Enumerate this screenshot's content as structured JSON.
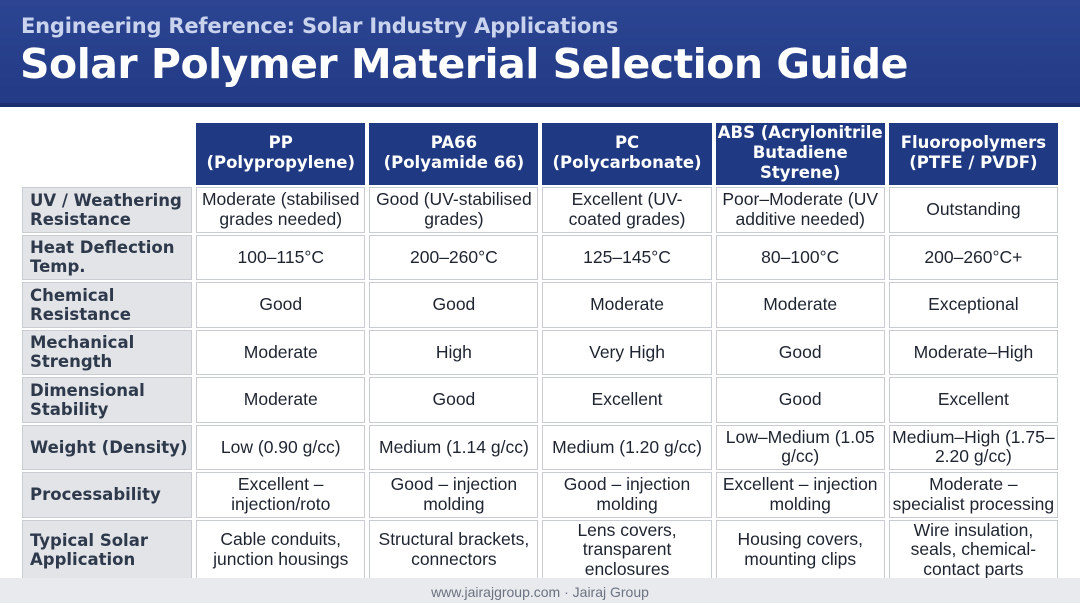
{
  "header": {
    "subtitle": "Engineering Reference: Solar Industry Applications",
    "title": "Solar Polymer Material Selection Guide"
  },
  "table": {
    "columns": [
      {
        "line1": "PP",
        "line2": "(Polypropylene)"
      },
      {
        "line1": "PA66",
        "line2": "(Polyamide 66)"
      },
      {
        "line1": "PC",
        "line2": "(Polycarbonate)"
      },
      {
        "line1": "ABS (Acrylonitrile",
        "line2": "Butadiene Styrene)"
      },
      {
        "line1": "Fluoropolymers",
        "line2": "(PTFE / PVDF)"
      }
    ],
    "rows": [
      {
        "label": "UV / Weathering Resistance",
        "cells": [
          "Moderate (stabilised grades needed)",
          "Good (UV-stabilised grades)",
          "Excellent (UV-coated grades)",
          "Poor–Moderate (UV additive needed)",
          "Outstanding"
        ]
      },
      {
        "label": "Heat Deflection Temp.",
        "cells": [
          "100–115°C",
          "200–260°C",
          "125–145°C",
          "80–100°C",
          "200–260°C+"
        ]
      },
      {
        "label": "Chemical Resistance",
        "cells": [
          "Good",
          "Good",
          "Moderate",
          "Moderate",
          "Exceptional"
        ]
      },
      {
        "label": "Mechanical Strength",
        "cells": [
          "Moderate",
          "High",
          "Very High",
          "Good",
          "Moderate–High"
        ]
      },
      {
        "label": "Dimensional Stability",
        "cells": [
          "Moderate",
          "Good",
          "Excellent",
          "Good",
          "Excellent"
        ]
      },
      {
        "label": "Weight (Density)",
        "cells": [
          "Low (0.90 g/cc)",
          "Medium (1.14 g/cc)",
          "Medium (1.20 g/cc)",
          "Low–Medium (1.05 g/cc)",
          "Medium–High (1.75–2.20 g/cc)"
        ]
      },
      {
        "label": "Processability",
        "cells": [
          "Excellent – injection/roto",
          "Good – injection molding",
          "Good – injection molding",
          "Excellent – injection molding",
          "Moderate – specialist processing"
        ]
      },
      {
        "label": "Typical Solar Application",
        "cells": [
          "Cable conduits, junction housings",
          "Structural brackets, connectors",
          "Lens covers, transparent enclosures",
          "Housing covers, mounting clips",
          "Wire insulation, seals, chemical-contact parts"
        ]
      }
    ]
  },
  "footer": {
    "text": "www.jairajgroup.com · Jairaj Group"
  }
}
